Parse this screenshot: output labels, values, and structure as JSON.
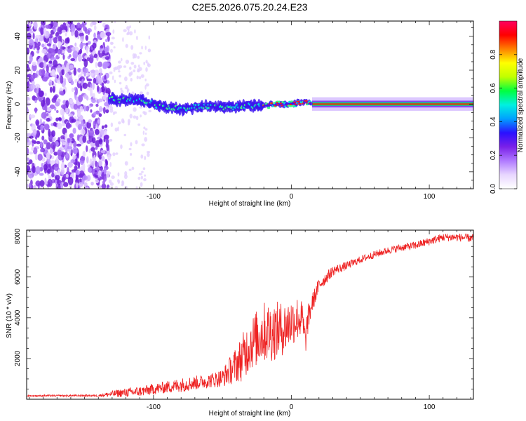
{
  "chart_data": [
    {
      "type": "heatmap",
      "title": "C2E5.2026.075.20.24.E23",
      "xlabel": "Height of straight line (km)",
      "ylabel": "Frequency (Hz)",
      "xlim": [
        -192,
        132
      ],
      "ylim": [
        -50,
        49
      ],
      "xticks": [
        -100,
        0,
        100
      ],
      "xtick_labels": [
        "-100",
        "0",
        "100"
      ],
      "yticks": [
        -40,
        -20,
        0,
        20,
        40
      ],
      "ytick_labels": [
        "-40",
        "-20",
        "0",
        "20",
        "40"
      ],
      "colorbar": {
        "label": "Normalized spectral amplitude",
        "range": [
          0,
          1
        ],
        "ticks": [
          0.0,
          0.2,
          0.4,
          0.6,
          0.8
        ],
        "tick_labels": [
          "0.0",
          "0.2",
          "0.4",
          "0.6",
          "0.8"
        ],
        "colormap": [
          "#ffffff",
          "#e8d6ff",
          "#b07aff",
          "#7a20e8",
          "#2a10ff",
          "#00a0ff",
          "#00f0e0",
          "#00ff40",
          "#c0ff00",
          "#ffff00",
          "#ff8000",
          "#ff0000",
          "#ff0060"
        ]
      },
      "ridge": {
        "description_points_x": [
          -132,
          -120,
          -110,
          -100,
          -90,
          -80,
          -70,
          -60,
          -50,
          -40,
          -30,
          -20,
          -10,
          0,
          5,
          10,
          15,
          20,
          50,
          100,
          132
        ],
        "frequency": [
          3,
          2.5,
          2,
          0,
          -2,
          -3,
          -2,
          -1,
          -2,
          -2,
          -1,
          -1,
          0,
          0,
          1,
          1,
          0,
          0,
          0,
          0,
          0
        ],
        "noise_region_x": [
          -192,
          -132
        ]
      }
    },
    {
      "type": "line",
      "xlabel": "Height of straight line (km)",
      "ylabel": "SNR (10 * v/v)",
      "xlim": [
        -192,
        132
      ],
      "ylim": [
        0,
        8300
      ],
      "xticks": [
        -100,
        0,
        100
      ],
      "xtick_labels": [
        "-100",
        "0",
        "100"
      ],
      "yticks": [
        2000,
        4000,
        6000,
        8000
      ],
      "ytick_labels": [
        "2000",
        "4000",
        "6000",
        "8000"
      ],
      "series": [
        {
          "name": "SNR",
          "color": "#ee2222",
          "trend": {
            "x": [
              -192,
              -140,
              -125,
              -110,
              -90,
              -80,
              -60,
              -50,
              -40,
              -35,
              -30,
              -25,
              -20,
              -15,
              -10,
              -5,
              0,
              5,
              8,
              10,
              12,
              15,
              20,
              30,
              40,
              50,
              60,
              70,
              80,
              90,
              100,
              110,
              120,
              132
            ],
            "y": [
              170,
              180,
              300,
              380,
              600,
              700,
              900,
              1050,
              1700,
              2100,
              2700,
              3000,
              3300,
              3300,
              3400,
              3500,
              3800,
              4000,
              3900,
              2800,
              3900,
              4700,
              5600,
              6300,
              6550,
              6850,
              7100,
              7300,
              7450,
              7550,
              7750,
              7950,
              7950,
              7900
            ],
            "noise_amplitude": [
              40,
              50,
              200,
              250,
              300,
              350,
              350,
              450,
              900,
              1200,
              1300,
              1400,
              1500,
              1500,
              1400,
              1300,
              1200,
              1100,
              900,
              800,
              700,
              500,
              350,
              250,
              200,
              180,
              180,
              180,
              180,
              200,
              200,
              200,
              200,
              200
            ]
          }
        }
      ]
    }
  ]
}
